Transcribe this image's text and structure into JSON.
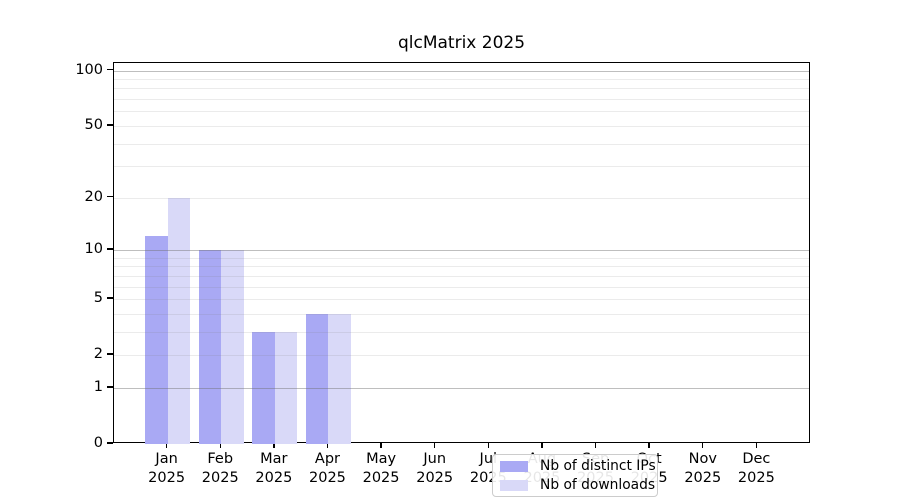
{
  "figure": {
    "background": "#ffffff"
  },
  "chart_data": {
    "type": "bar",
    "title": "qlcMatrix 2025",
    "categories": [
      "Jan",
      "Feb",
      "Mar",
      "Apr",
      "May",
      "Jun",
      "Jul",
      "Aug",
      "Sep",
      "Oct",
      "Nov",
      "Dec"
    ],
    "category_year": "2025",
    "series": [
      {
        "name": "Nb of distinct IPs",
        "color": "#a9a9f4",
        "values": [
          12,
          10,
          3,
          4,
          0,
          0,
          0,
          0,
          0,
          0,
          0,
          0
        ]
      },
      {
        "name": "Nb of downloads",
        "color": "#d9d9f8",
        "values": [
          20,
          10,
          3,
          4,
          0,
          0,
          0,
          0,
          0,
          0,
          0,
          0
        ]
      }
    ],
    "xlabel": "",
    "ylabel": "",
    "yscale": "log1p",
    "ylim": [
      0,
      110
    ],
    "yticks": [
      0,
      1,
      2,
      5,
      10,
      20,
      50,
      100
    ],
    "gridlines": {
      "major": [
        1,
        10,
        100
      ],
      "minor": [
        2,
        3,
        4,
        5,
        6,
        7,
        8,
        9,
        20,
        30,
        40,
        50,
        60,
        70,
        80,
        90
      ]
    },
    "grid": "on",
    "legend_position": "lower-center-inside"
  },
  "colors": {
    "bar_distinct_ips": "#a9a9f4",
    "bar_downloads": "#d9d9f8",
    "axis_spine": "#000000",
    "grid_major": "rgba(110,110,110,0.45)",
    "grid_minor": "rgba(128,128,128,0.16)",
    "legend_border": "#cccccc",
    "text": "#000000"
  }
}
